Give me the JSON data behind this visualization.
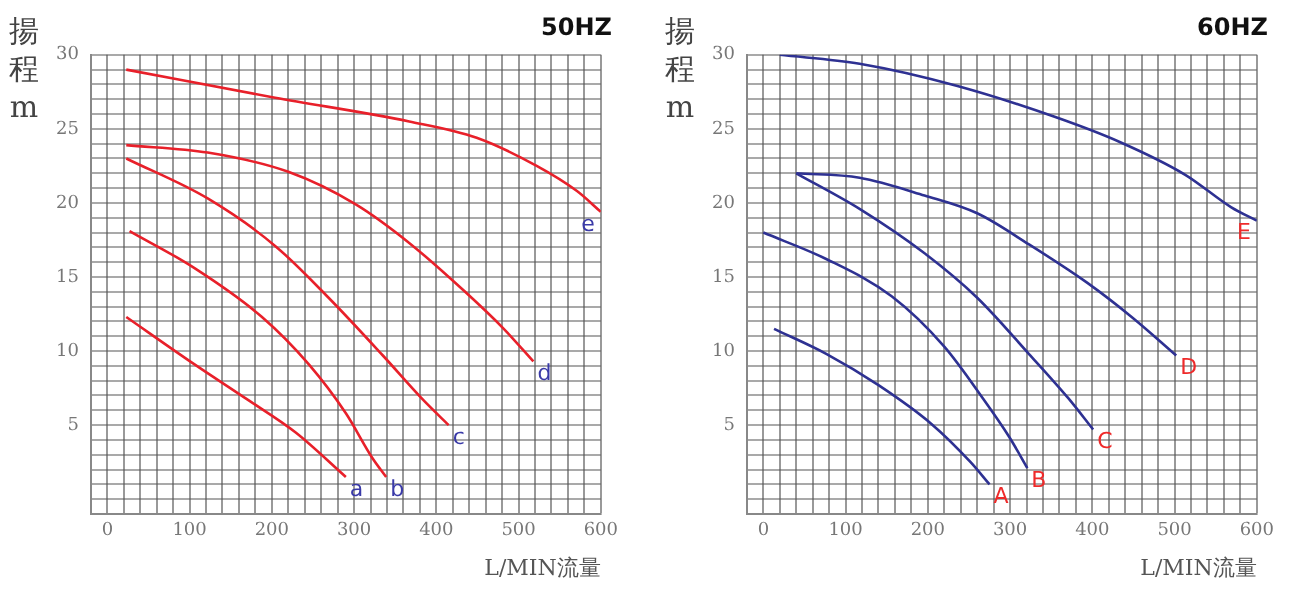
{
  "chart_data": [
    {
      "type": "line",
      "title": "50HZ",
      "xlabel": "L/MIN流量",
      "ylabel": "揚程m",
      "grid": true,
      "legend": false,
      "marker": "none",
      "line_style": "solid",
      "xlim": [
        -20,
        600
      ],
      "ylim": [
        -1,
        30
      ],
      "xticks": [
        0,
        {
          "value": 20,
          "label": null
        },
        {
          "value": 40,
          "label": null
        },
        {
          "value": 60,
          "label": null
        },
        {
          "value": 80,
          "label": null
        },
        100,
        {
          "value": 120,
          "label": null
        },
        {
          "value": 140,
          "label": null
        },
        {
          "value": 160,
          "label": null
        },
        {
          "value": 180,
          "label": null
        },
        200,
        {
          "value": 220,
          "label": null
        },
        {
          "value": 240,
          "label": null
        },
        {
          "value": 260,
          "label": null
        },
        {
          "value": 280,
          "label": null
        },
        300,
        {
          "value": 320,
          "label": null
        },
        {
          "value": 340,
          "label": null
        },
        {
          "value": 360,
          "label": null
        },
        {
          "value": 380,
          "label": null
        },
        400,
        {
          "value": 420,
          "label": null
        },
        {
          "value": 440,
          "label": null
        },
        {
          "value": 460,
          "label": null
        },
        {
          "value": 480,
          "label": null
        },
        500,
        {
          "value": 520,
          "label": null
        },
        {
          "value": 540,
          "label": null
        },
        {
          "value": 560,
          "label": null
        },
        {
          "value": 580,
          "label": null
        },
        600
      ],
      "yticks": [
        {
          "value": 0,
          "label": null
        },
        {
          "value": 1,
          "label": null
        },
        {
          "value": 2,
          "label": null
        },
        {
          "value": 3,
          "label": null
        },
        {
          "value": 4,
          "label": null
        },
        5,
        {
          "value": 6,
          "label": null
        },
        {
          "value": 7,
          "label": null
        },
        {
          "value": 8,
          "label": null
        },
        {
          "value": 9,
          "label": null
        },
        10,
        {
          "value": 11,
          "label": null
        },
        {
          "value": 12,
          "label": null
        },
        {
          "value": 13,
          "label": null
        },
        {
          "value": 14,
          "label": null
        },
        15,
        {
          "value": 16,
          "label": null
        },
        {
          "value": 17,
          "label": null
        },
        {
          "value": 18,
          "label": null
        },
        {
          "value": 19,
          "label": null
        },
        20,
        {
          "value": 21,
          "label": null
        },
        {
          "value": 22,
          "label": null
        },
        {
          "value": 23,
          "label": null
        },
        {
          "value": 24,
          "label": null
        },
        25,
        {
          "value": 26,
          "label": null
        },
        {
          "value": 27,
          "label": null
        },
        {
          "value": 28,
          "label": null
        },
        {
          "value": 29,
          "label": null
        },
        30
      ],
      "series": [
        {
          "name": "a",
          "color": "#e8202a",
          "x": [
            23,
            106,
            171,
            229,
            290
          ],
          "values": [
            12.3,
            9.1,
            6.7,
            4.5,
            1.5
          ]
        },
        {
          "name": "b",
          "color": "#e8202a",
          "x": [
            27,
            106,
            188,
            245,
            290,
            322,
            339
          ],
          "values": [
            18.1,
            15.6,
            12.3,
            9.1,
            5.8,
            2.8,
            1.5
          ]
        },
        {
          "name": "c",
          "color": "#e8202a",
          "x": [
            23,
            122,
            204,
            269,
            335,
            384,
            415
          ],
          "values": [
            23.0,
            20.3,
            17.1,
            13.6,
            9.7,
            6.7,
            5.0
          ]
        },
        {
          "name": "d",
          "color": "#e8202a",
          "x": [
            23,
            122,
            220,
            302,
            367,
            433,
            482,
            518
          ],
          "values": [
            23.9,
            23.4,
            22.1,
            19.9,
            17.3,
            14.1,
            11.5,
            9.3
          ]
        },
        {
          "name": "e",
          "color": "#e8202a",
          "x": [
            23,
            204,
            367,
            449,
            522,
            571,
            600
          ],
          "values": [
            29.0,
            27.1,
            25.5,
            24.4,
            22.5,
            20.8,
            19.4
          ]
        }
      ]
    },
    {
      "type": "line",
      "title": "60HZ",
      "xlabel": "L/MIN流量",
      "ylabel": "揚程m",
      "grid": true,
      "legend": false,
      "marker": "none",
      "line_style": "solid",
      "xlim": [
        -20,
        600
      ],
      "ylim": [
        -1,
        30
      ],
      "xticks": [
        0,
        {
          "value": 20,
          "label": null
        },
        {
          "value": 40,
          "label": null
        },
        {
          "value": 60,
          "label": null
        },
        {
          "value": 80,
          "label": null
        },
        100,
        {
          "value": 120,
          "label": null
        },
        {
          "value": 140,
          "label": null
        },
        {
          "value": 160,
          "label": null
        },
        {
          "value": 180,
          "label": null
        },
        200,
        {
          "value": 220,
          "label": null
        },
        {
          "value": 240,
          "label": null
        },
        {
          "value": 260,
          "label": null
        },
        {
          "value": 280,
          "label": null
        },
        300,
        {
          "value": 320,
          "label": null
        },
        {
          "value": 340,
          "label": null
        },
        {
          "value": 360,
          "label": null
        },
        {
          "value": 380,
          "label": null
        },
        400,
        {
          "value": 420,
          "label": null
        },
        {
          "value": 440,
          "label": null
        },
        {
          "value": 460,
          "label": null
        },
        {
          "value": 480,
          "label": null
        },
        500,
        {
          "value": 520,
          "label": null
        },
        {
          "value": 540,
          "label": null
        },
        {
          "value": 560,
          "label": null
        },
        {
          "value": 580,
          "label": null
        },
        600
      ],
      "yticks": [
        {
          "value": 0,
          "label": null
        },
        {
          "value": 1,
          "label": null
        },
        {
          "value": 2,
          "label": null
        },
        {
          "value": 3,
          "label": null
        },
        {
          "value": 4,
          "label": null
        },
        5,
        {
          "value": 6,
          "label": null
        },
        {
          "value": 7,
          "label": null
        },
        {
          "value": 8,
          "label": null
        },
        {
          "value": 9,
          "label": null
        },
        10,
        {
          "value": 11,
          "label": null
        },
        {
          "value": 12,
          "label": null
        },
        {
          "value": 13,
          "label": null
        },
        {
          "value": 14,
          "label": null
        },
        15,
        {
          "value": 16,
          "label": null
        },
        {
          "value": 17,
          "label": null
        },
        {
          "value": 18,
          "label": null
        },
        {
          "value": 19,
          "label": null
        },
        20,
        {
          "value": 21,
          "label": null
        },
        {
          "value": 22,
          "label": null
        },
        {
          "value": 23,
          "label": null
        },
        {
          "value": 24,
          "label": null
        },
        25,
        {
          "value": 26,
          "label": null
        },
        {
          "value": 27,
          "label": null
        },
        {
          "value": 28,
          "label": null
        },
        {
          "value": 29,
          "label": null
        },
        30
      ],
      "series": [
        {
          "name": "A",
          "color": "#2e3192",
          "x": [
            13,
            77,
            140,
            204,
            252,
            275
          ],
          "values": [
            11.5,
            9.8,
            7.7,
            5.1,
            2.5,
            1.0
          ]
        },
        {
          "name": "B",
          "color": "#2e3192",
          "x": [
            0,
            77,
            156,
            220,
            267,
            299,
            321
          ],
          "values": [
            18.0,
            16.2,
            13.7,
            10.3,
            6.8,
            4.2,
            2.1
          ]
        },
        {
          "name": "C",
          "color": "#2e3192",
          "x": [
            40,
            117,
            196,
            260,
            323,
            371,
            401
          ],
          "values": [
            22.0,
            19.6,
            16.6,
            13.6,
            9.8,
            6.8,
            4.7
          ]
        },
        {
          "name": "D",
          "color": "#2e3192",
          "x": [
            40,
            117,
            196,
            260,
            323,
            394,
            450,
            502
          ],
          "values": [
            22.0,
            21.7,
            20.5,
            19.3,
            17.2,
            14.6,
            12.2,
            9.7
          ]
        },
        {
          "name": "E",
          "color": "#2e3192",
          "x": [
            20,
            117,
            236,
            355,
            434,
            513,
            569,
            600
          ],
          "values": [
            30.0,
            29.4,
            27.9,
            25.8,
            24.1,
            21.9,
            19.7,
            18.8
          ]
        }
      ]
    }
  ]
}
